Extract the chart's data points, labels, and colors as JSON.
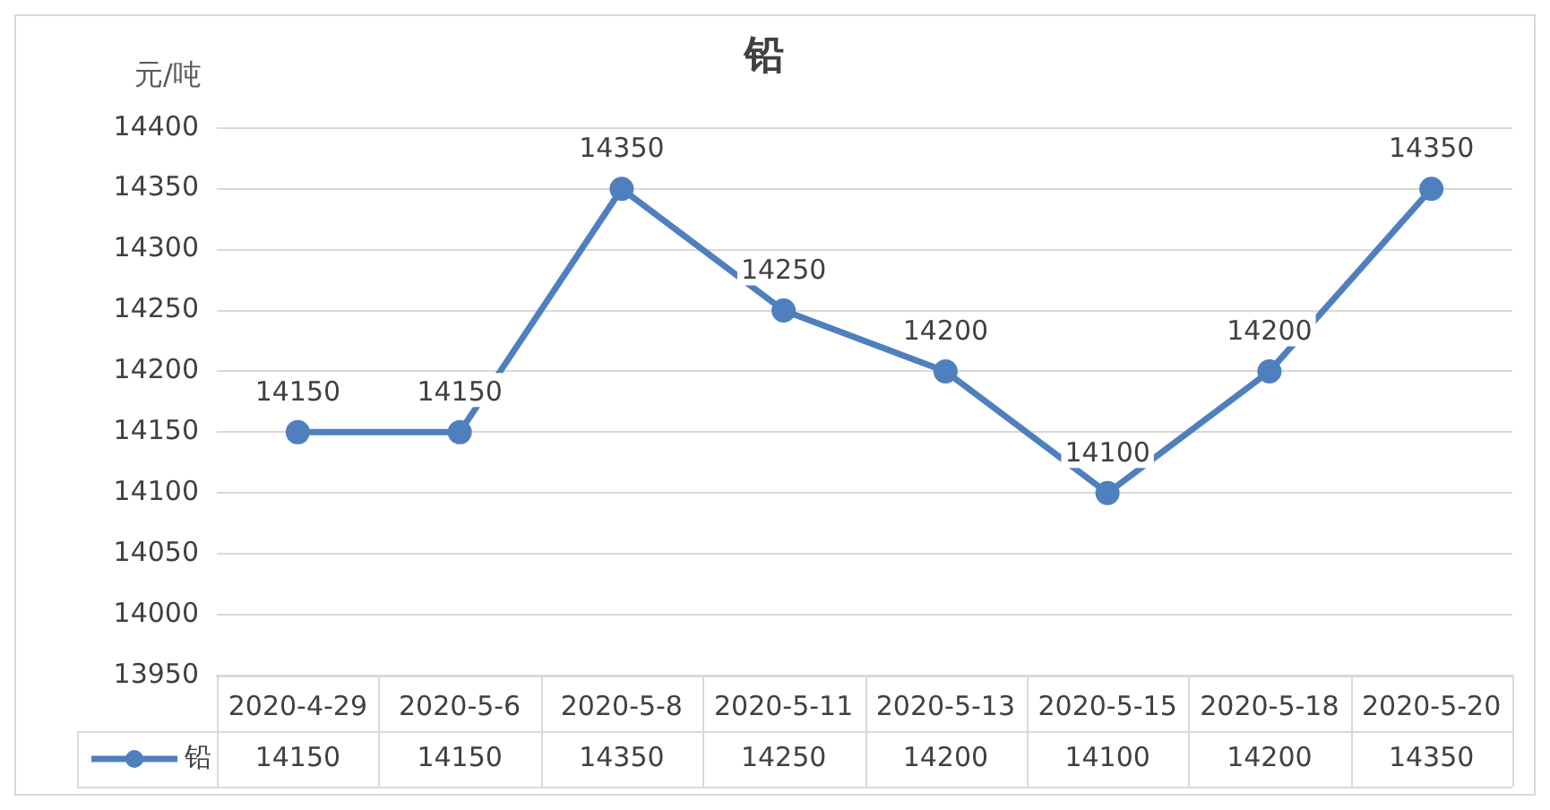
{
  "chart_data": {
    "type": "line",
    "title": "铅",
    "ylabel": "元/吨",
    "categories": [
      "2020-4-29",
      "2020-5-6",
      "2020-5-8",
      "2020-5-11",
      "2020-5-13",
      "2020-5-15",
      "2020-5-18",
      "2020-5-20"
    ],
    "series": [
      {
        "name": "铅",
        "color": "#4f7fbd",
        "values": [
          14150,
          14150,
          14350,
          14250,
          14200,
          14100,
          14200,
          14350
        ]
      }
    ],
    "ylim": [
      13950,
      14400
    ],
    "yticks": [
      13950,
      14000,
      14050,
      14100,
      14150,
      14200,
      14250,
      14300,
      14350,
      14400
    ],
    "annotations": [
      "14150",
      "14150",
      "14350",
      "14250",
      "14200",
      "14100",
      "14200",
      "14350"
    ],
    "grid": "y",
    "legend": "bottom",
    "marker": "circle",
    "line_style": "solid",
    "data_labels": true
  }
}
